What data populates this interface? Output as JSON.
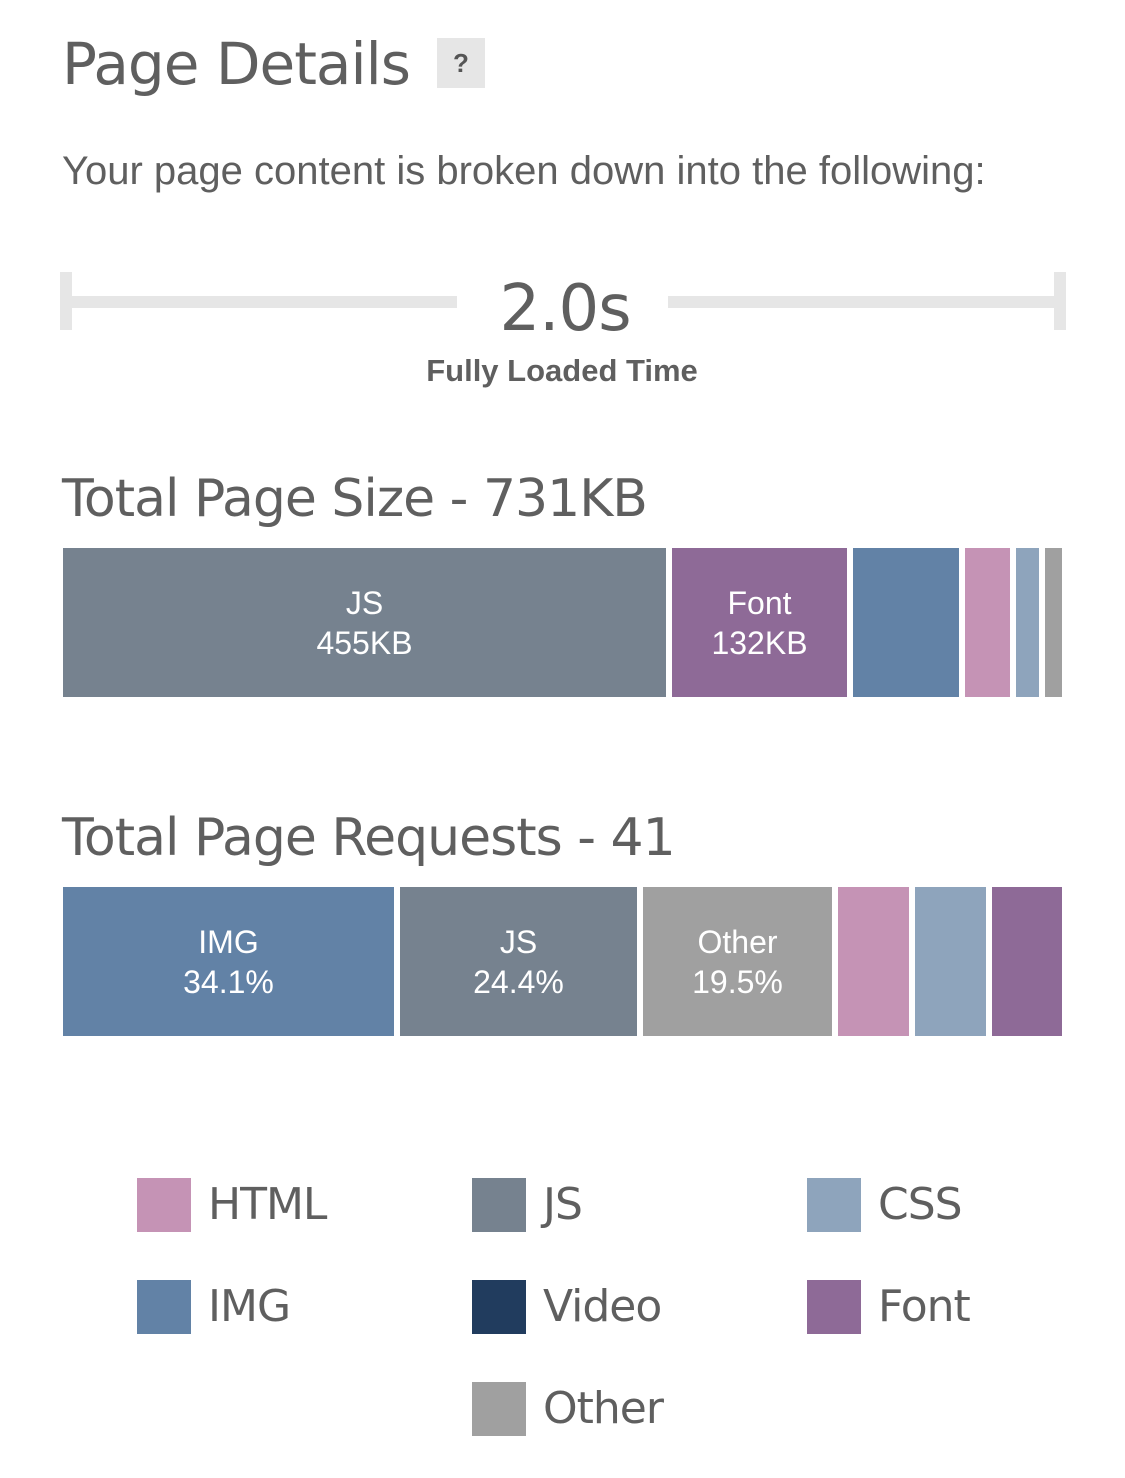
{
  "header": {
    "title": "Page Details",
    "help_label": "?",
    "subtitle": "Your page content is broken down into the following:"
  },
  "fully_loaded": {
    "value": "2.0s",
    "label": "Fully Loaded Time"
  },
  "colors": {
    "HTML": "#c593b5",
    "JS": "#76828f",
    "CSS": "#8ea4bc",
    "IMG": "#6282a6",
    "Video": "#213c5e",
    "Font": "#8e6a97",
    "Other": "#a0a0a0"
  },
  "legend": [
    {
      "key": "HTML",
      "label": "HTML"
    },
    {
      "key": "JS",
      "label": "JS"
    },
    {
      "key": "CSS",
      "label": "CSS"
    },
    {
      "key": "IMG",
      "label": "IMG"
    },
    {
      "key": "Video",
      "label": "Video"
    },
    {
      "key": "Font",
      "label": "Font"
    },
    {
      "key": "Other",
      "label": "Other"
    }
  ],
  "chart_data": [
    {
      "type": "bar",
      "orientation": "horizontal-stacked",
      "title": "Total Page Size - 731KB",
      "unit": "KB",
      "total": 731,
      "segments": [
        {
          "category": "JS",
          "value": 455,
          "label": "JS",
          "value_label": "455KB"
        },
        {
          "category": "Font",
          "value": 132,
          "label": "Font",
          "value_label": "132KB"
        },
        {
          "category": "IMG",
          "value": 80
        },
        {
          "category": "HTML",
          "value": 34
        },
        {
          "category": "CSS",
          "value": 17
        },
        {
          "category": "Other",
          "value": 13
        }
      ]
    },
    {
      "type": "bar",
      "orientation": "horizontal-stacked",
      "title": "Total Page Requests - 41",
      "unit": "%",
      "total": 100,
      "segments": [
        {
          "category": "IMG",
          "value": 34.1,
          "label": "IMG",
          "value_label": "34.1%"
        },
        {
          "category": "JS",
          "value": 24.4,
          "label": "JS",
          "value_label": "24.4%"
        },
        {
          "category": "Other",
          "value": 19.5,
          "label": "Other",
          "value_label": "19.5%"
        },
        {
          "category": "HTML",
          "value": 7.3
        },
        {
          "category": "CSS",
          "value": 7.3
        },
        {
          "category": "Font",
          "value": 7.3
        }
      ]
    }
  ]
}
